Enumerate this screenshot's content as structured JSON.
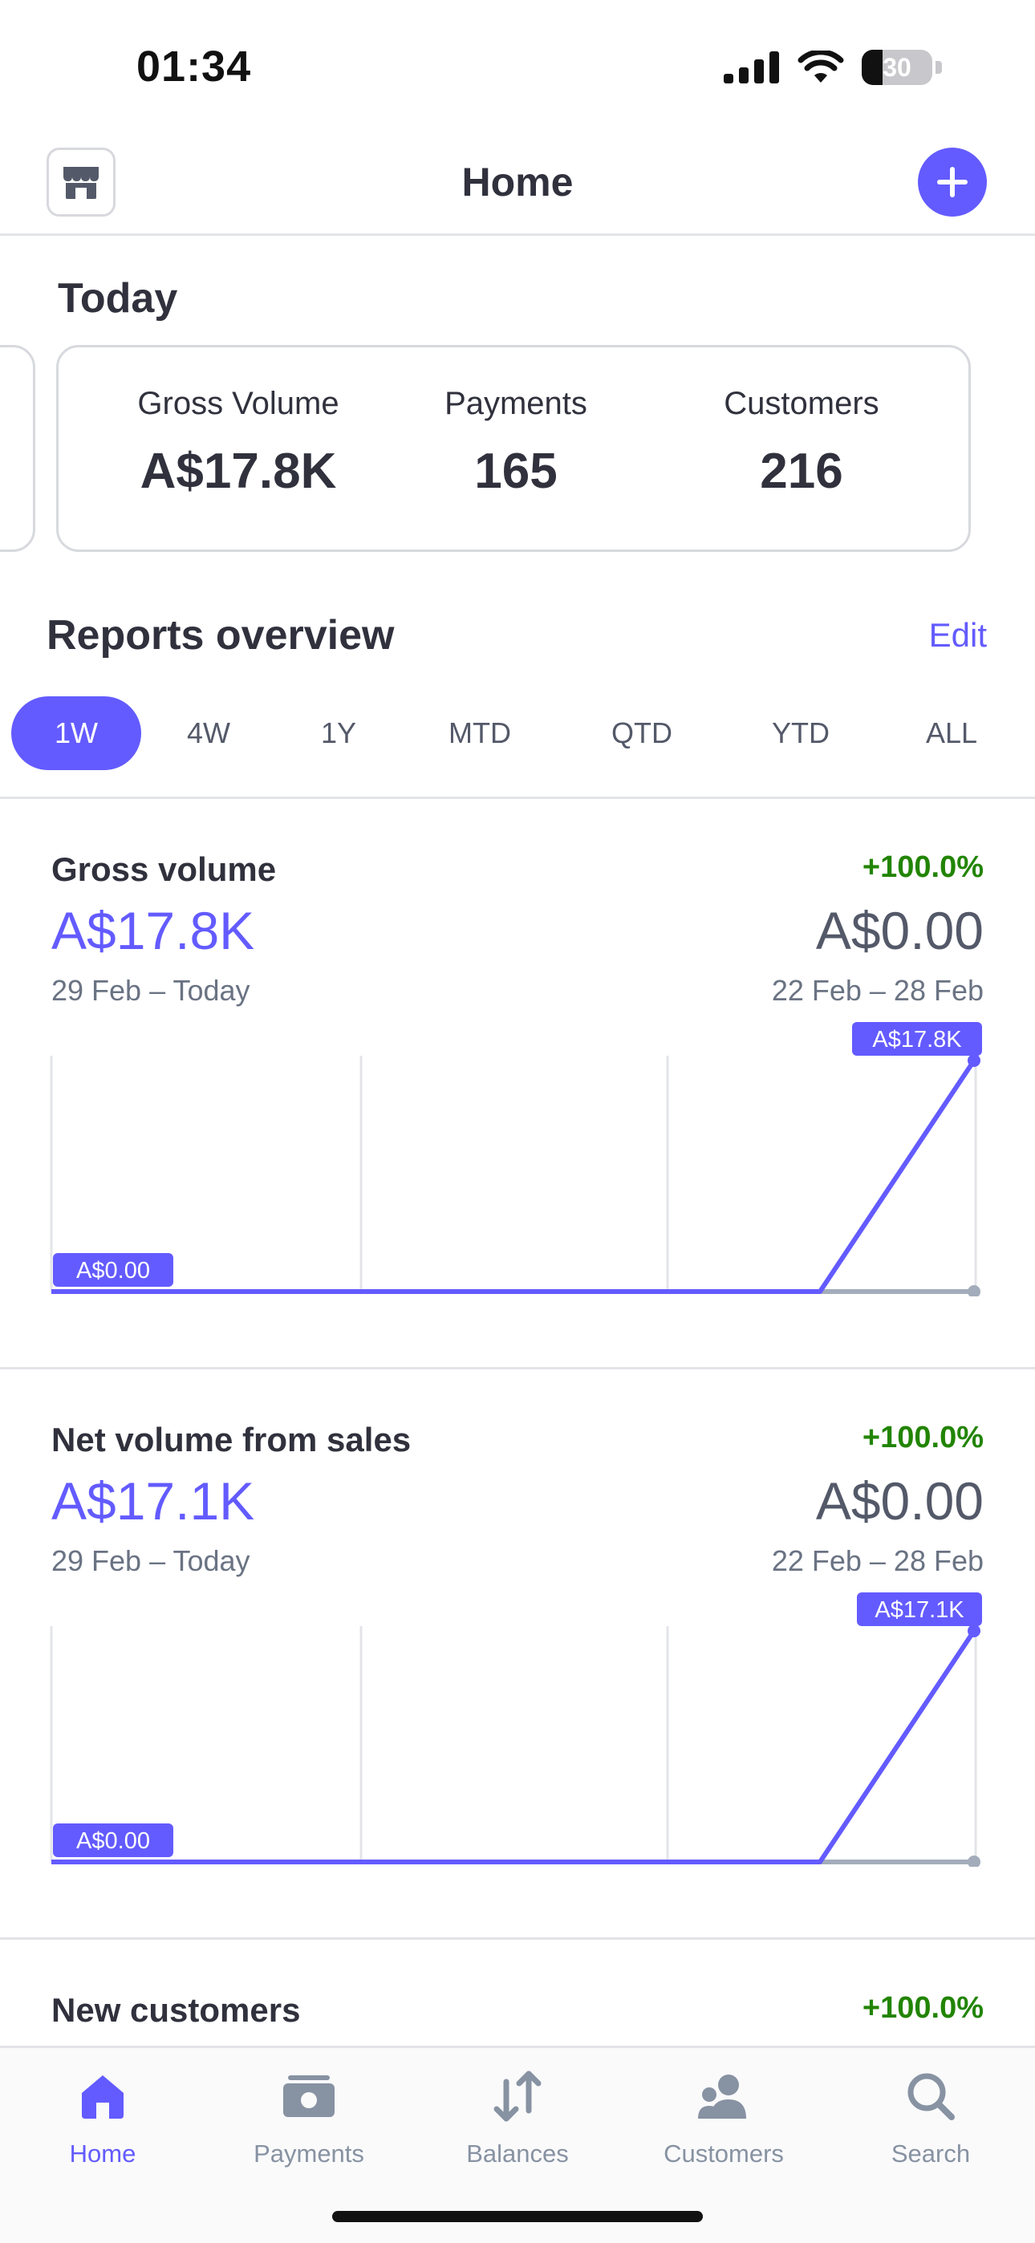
{
  "status_bar": {
    "time": "01:34",
    "battery": "30"
  },
  "navbar": {
    "title": "Home",
    "left_icon": "store-icon",
    "right_icon": "plus-icon"
  },
  "today": {
    "title": "Today",
    "stats": [
      {
        "label": "Gross Volume",
        "value": "A$17.8K"
      },
      {
        "label": "Payments",
        "value": "165"
      },
      {
        "label": "Customers",
        "value": "216"
      }
    ]
  },
  "reports": {
    "title": "Reports overview",
    "edit_label": "Edit",
    "ranges": [
      "1W",
      "4W",
      "1Y",
      "MTD",
      "QTD",
      "YTD",
      "ALL"
    ],
    "selected_range": "1W"
  },
  "metrics": [
    {
      "name": "Gross volume",
      "change": "+100.0%",
      "value": "A$17.8K",
      "previous_value": "A$0.00",
      "range": "29 Feb – Today",
      "previous_range": "22 Feb – 28 Feb",
      "chart": {
        "start_label": "A$0.00",
        "end_label": "A$17.8K"
      }
    },
    {
      "name": "Net volume from sales",
      "change": "+100.0%",
      "value": "A$17.1K",
      "previous_value": "A$0.00",
      "range": "29 Feb – Today",
      "previous_range": "22 Feb – 28 Feb",
      "chart": {
        "start_label": "A$0.00",
        "end_label": "A$17.1K"
      }
    },
    {
      "name": "New customers",
      "change": "+100.0%"
    }
  ],
  "tabbar": {
    "items": [
      {
        "label": "Home",
        "icon": "home-icon",
        "active": true
      },
      {
        "label": "Payments",
        "icon": "payments-icon",
        "active": false
      },
      {
        "label": "Balances",
        "icon": "balances-icon",
        "active": false
      },
      {
        "label": "Customers",
        "icon": "customers-icon",
        "active": false
      },
      {
        "label": "Search",
        "icon": "search-icon",
        "active": false
      }
    ]
  },
  "colors": {
    "accent": "#635bff",
    "positive": "#228403",
    "text": "#30313d",
    "muted": "#6a7383",
    "previous_period_line": "#a3acba"
  }
}
